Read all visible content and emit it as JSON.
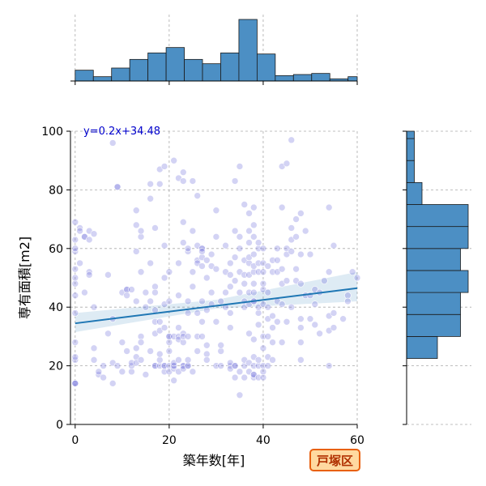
{
  "chart_data": {
    "type": "scatter",
    "title": "",
    "xlabel": "築年数[年]",
    "ylabel": "専有面積[m2]",
    "xlim": [
      -1,
      60
    ],
    "ylim": [
      0,
      100
    ],
    "xticks": [
      0,
      20,
      40,
      60
    ],
    "yticks": [
      0,
      20,
      40,
      60,
      80,
      100
    ],
    "grid": true,
    "regression": {
      "label": "y=0.2x+34.48",
      "slope": 0.2,
      "intercept": 34.48,
      "x_range": [
        0,
        60
      ],
      "ci_band": {
        "x": [
          0,
          30,
          60
        ],
        "lower": [
          31.5,
          39.5,
          42
        ],
        "upper": [
          38,
          42.5,
          52
        ]
      }
    },
    "badge": "戸塚区",
    "colors": {
      "point": "#7777dd",
      "line": "#1f77b4",
      "hist": "#4c8fc4",
      "badge_bg": "#ffd9a0",
      "badge_border": "#e86010"
    },
    "top_histogram": {
      "bin_edges": [
        0,
        3.87,
        7.74,
        11.61,
        15.48,
        19.35,
        23.22,
        27.09,
        30.96,
        34.83,
        38.7,
        42.57,
        46.44,
        50.31,
        54.18,
        58.05,
        60
      ],
      "counts": [
        10,
        4,
        12,
        20,
        26,
        31,
        20,
        16,
        26,
        57,
        25,
        5,
        6,
        7,
        2,
        4
      ]
    },
    "right_histogram": {
      "bin_edges": [
        0,
        7.5,
        15,
        22.5,
        30,
        37.5,
        45,
        52.5,
        60,
        67.5,
        75,
        82.5,
        90,
        97.5,
        100
      ],
      "counts": [
        0,
        0,
        0,
        4,
        7,
        7,
        8,
        7,
        8,
        8,
        2,
        1,
        1,
        1
      ]
    },
    "points": [
      [
        0,
        14
      ],
      [
        0,
        14
      ],
      [
        0,
        14
      ],
      [
        0,
        22
      ],
      [
        0,
        23
      ],
      [
        0,
        28
      ],
      [
        0,
        38
      ],
      [
        0,
        44
      ],
      [
        0,
        48
      ],
      [
        0,
        50
      ],
      [
        0,
        53
      ],
      [
        0,
        59
      ],
      [
        0,
        60
      ],
      [
        0,
        63
      ],
      [
        0,
        69
      ],
      [
        1,
        67
      ],
      [
        1,
        66
      ],
      [
        1,
        55
      ],
      [
        2,
        45
      ],
      [
        2,
        64
      ],
      [
        2,
        64
      ],
      [
        3,
        52
      ],
      [
        3,
        51
      ],
      [
        3,
        63
      ],
      [
        3,
        66
      ],
      [
        4,
        65
      ],
      [
        4,
        40
      ],
      [
        4,
        26
      ],
      [
        4,
        22
      ],
      [
        5,
        17
      ],
      [
        5,
        18
      ],
      [
        6,
        16
      ],
      [
        6,
        20
      ],
      [
        7,
        51
      ],
      [
        7,
        31
      ],
      [
        8,
        14
      ],
      [
        8,
        36
      ],
      [
        8,
        21
      ],
      [
        8,
        96
      ],
      [
        9,
        81
      ],
      [
        9,
        81
      ],
      [
        9,
        20
      ],
      [
        10,
        18
      ],
      [
        10,
        45
      ],
      [
        10,
        28
      ],
      [
        11,
        46
      ],
      [
        11,
        46
      ],
      [
        11,
        44
      ],
      [
        11,
        25
      ],
      [
        12,
        46
      ],
      [
        12,
        18
      ],
      [
        12,
        20
      ],
      [
        12,
        21
      ],
      [
        13,
        23
      ],
      [
        13,
        21
      ],
      [
        13,
        42
      ],
      [
        13,
        26
      ],
      [
        13,
        59
      ],
      [
        13,
        68
      ],
      [
        13,
        73
      ],
      [
        14,
        52
      ],
      [
        14,
        64
      ],
      [
        14,
        66
      ],
      [
        14,
        30
      ],
      [
        14,
        28
      ],
      [
        14,
        22
      ],
      [
        15,
        17
      ],
      [
        15,
        45
      ],
      [
        15,
        40
      ],
      [
        16,
        42
      ],
      [
        16,
        55
      ],
      [
        16,
        25
      ],
      [
        16,
        77
      ],
      [
        16,
        82
      ],
      [
        17,
        67
      ],
      [
        17,
        39
      ],
      [
        17,
        31
      ],
      [
        17,
        20
      ],
      [
        17,
        20
      ],
      [
        17,
        47
      ],
      [
        17,
        45
      ],
      [
        17,
        35
      ],
      [
        18,
        35
      ],
      [
        18,
        87
      ],
      [
        18,
        82
      ],
      [
        18,
        32
      ],
      [
        18,
        20
      ],
      [
        18,
        22
      ],
      [
        18,
        24
      ],
      [
        19,
        18
      ],
      [
        19,
        20
      ],
      [
        19,
        20
      ],
      [
        19,
        41
      ],
      [
        19,
        50
      ],
      [
        19,
        61
      ],
      [
        19,
        33
      ],
      [
        19,
        88
      ],
      [
        20,
        20
      ],
      [
        20,
        28
      ],
      [
        20,
        30
      ],
      [
        20,
        25
      ],
      [
        20,
        52
      ],
      [
        20,
        42
      ],
      [
        20,
        30
      ],
      [
        20,
        18
      ],
      [
        21,
        90
      ],
      [
        21,
        30
      ],
      [
        21,
        20
      ],
      [
        21,
        19
      ],
      [
        21,
        20
      ],
      [
        21,
        15
      ],
      [
        21,
        21
      ],
      [
        22,
        33
      ],
      [
        22,
        30
      ],
      [
        22,
        44
      ],
      [
        22,
        84
      ],
      [
        22,
        29
      ],
      [
        22,
        22
      ],
      [
        22,
        55
      ],
      [
        22,
        18
      ],
      [
        23,
        86
      ],
      [
        23,
        83
      ],
      [
        23,
        69
      ],
      [
        23,
        62
      ],
      [
        23,
        31
      ],
      [
        23,
        28
      ],
      [
        23,
        20
      ],
      [
        23,
        20
      ],
      [
        23,
        30
      ],
      [
        23,
        19
      ],
      [
        24,
        59
      ],
      [
        24,
        42
      ],
      [
        24,
        38
      ],
      [
        24,
        30
      ],
      [
        24,
        20
      ],
      [
        24,
        20
      ],
      [
        24,
        22
      ],
      [
        24,
        60
      ],
      [
        25,
        18
      ],
      [
        25,
        47
      ],
      [
        25,
        52
      ],
      [
        25,
        66
      ],
      [
        25,
        83
      ],
      [
        26,
        56
      ],
      [
        26,
        78
      ],
      [
        26,
        61
      ],
      [
        26,
        30
      ],
      [
        26,
        38
      ],
      [
        26,
        55
      ],
      [
        26,
        25
      ],
      [
        27,
        54
      ],
      [
        27,
        57
      ],
      [
        27,
        60
      ],
      [
        27,
        60
      ],
      [
        27,
        59
      ],
      [
        27,
        42
      ],
      [
        27,
        35
      ],
      [
        27,
        30
      ],
      [
        28,
        56
      ],
      [
        28,
        50
      ],
      [
        28,
        24
      ],
      [
        28,
        22
      ],
      [
        28,
        39
      ],
      [
        28,
        27
      ],
      [
        29,
        45
      ],
      [
        29,
        41
      ],
      [
        29,
        54
      ],
      [
        29,
        58
      ],
      [
        30,
        53
      ],
      [
        30,
        64
      ],
      [
        30,
        73
      ],
      [
        30,
        35
      ],
      [
        30,
        20
      ],
      [
        31,
        25
      ],
      [
        31,
        42
      ],
      [
        31,
        27
      ],
      [
        31,
        20
      ],
      [
        32,
        52
      ],
      [
        32,
        61
      ],
      [
        32,
        45
      ],
      [
        32,
        40
      ],
      [
        33,
        47
      ],
      [
        33,
        51
      ],
      [
        33,
        55
      ],
      [
        33,
        33
      ],
      [
        33,
        38
      ],
      [
        33,
        20
      ],
      [
        33,
        21
      ],
      [
        33,
        19
      ],
      [
        34,
        83
      ],
      [
        34,
        66
      ],
      [
        34,
        49
      ],
      [
        34,
        57
      ],
      [
        34,
        20
      ],
      [
        34,
        16
      ],
      [
        34,
        20
      ],
      [
        35,
        10
      ],
      [
        35,
        18
      ],
      [
        35,
        45
      ],
      [
        35,
        52
      ],
      [
        35,
        60
      ],
      [
        35,
        64
      ],
      [
        35,
        88
      ],
      [
        36,
        16
      ],
      [
        36,
        20
      ],
      [
        36,
        22
      ],
      [
        36,
        48
      ],
      [
        36,
        51
      ],
      [
        36,
        42
      ],
      [
        36,
        40
      ],
      [
        36,
        56
      ],
      [
        36,
        75
      ],
      [
        37,
        18
      ],
      [
        37,
        21
      ],
      [
        37,
        55
      ],
      [
        37,
        31
      ],
      [
        37,
        41
      ],
      [
        37,
        45
      ],
      [
        37,
        51
      ],
      [
        37,
        57
      ],
      [
        37,
        62
      ],
      [
        37,
        66
      ],
      [
        37,
        72
      ],
      [
        38,
        16
      ],
      [
        38,
        17
      ],
      [
        38,
        20
      ],
      [
        38,
        17
      ],
      [
        38,
        23
      ],
      [
        38,
        29
      ],
      [
        38,
        42
      ],
      [
        38,
        42
      ],
      [
        38,
        45
      ],
      [
        38,
        48
      ],
      [
        38,
        52
      ],
      [
        38,
        54
      ],
      [
        38,
        58
      ],
      [
        38,
        64
      ],
      [
        38,
        68
      ],
      [
        38,
        74
      ],
      [
        39,
        16
      ],
      [
        39,
        20
      ],
      [
        39,
        22
      ],
      [
        39,
        34
      ],
      [
        39,
        38
      ],
      [
        39,
        40
      ],
      [
        39,
        52
      ],
      [
        39,
        55
      ],
      [
        39,
        60
      ],
      [
        39,
        62
      ],
      [
        40,
        16
      ],
      [
        40,
        18
      ],
      [
        40,
        20
      ],
      [
        40,
        26
      ],
      [
        40,
        30
      ],
      [
        40,
        41
      ],
      [
        40,
        46
      ],
      [
        40,
        48
      ],
      [
        40,
        52
      ],
      [
        40,
        55
      ],
      [
        40,
        60
      ],
      [
        41,
        20
      ],
      [
        41,
        23
      ],
      [
        41,
        30
      ],
      [
        41,
        36
      ],
      [
        41,
        40
      ],
      [
        41,
        45
      ],
      [
        41,
        54
      ],
      [
        42,
        22
      ],
      [
        42,
        28
      ],
      [
        42,
        33
      ],
      [
        42,
        37
      ],
      [
        42,
        52
      ],
      [
        42,
        56
      ],
      [
        43,
        35
      ],
      [
        43,
        42
      ],
      [
        43,
        52
      ],
      [
        43,
        56
      ],
      [
        43,
        60
      ],
      [
        44,
        28
      ],
      [
        44,
        41
      ],
      [
        44,
        48
      ],
      [
        44,
        53
      ],
      [
        44,
        74
      ],
      [
        44,
        88
      ],
      [
        45,
        35
      ],
      [
        45,
        49
      ],
      [
        45,
        58
      ],
      [
        45,
        60
      ],
      [
        45,
        89
      ],
      [
        46,
        59
      ],
      [
        46,
        63
      ],
      [
        46,
        67
      ],
      [
        46,
        40
      ],
      [
        46,
        97
      ],
      [
        47,
        49
      ],
      [
        47,
        53
      ],
      [
        47,
        64
      ],
      [
        47,
        70
      ],
      [
        48,
        22
      ],
      [
        48,
        28
      ],
      [
        48,
        33
      ],
      [
        48,
        36
      ],
      [
        48,
        48
      ],
      [
        48,
        58
      ],
      [
        48,
        72
      ],
      [
        49,
        44
      ],
      [
        49,
        66
      ],
      [
        50,
        36
      ],
      [
        50,
        44
      ],
      [
        50,
        58
      ],
      [
        51,
        41
      ],
      [
        51,
        46
      ],
      [
        51,
        34
      ],
      [
        52,
        31
      ],
      [
        52,
        45
      ],
      [
        53,
        49
      ],
      [
        54,
        32
      ],
      [
        54,
        37
      ],
      [
        54,
        52
      ],
      [
        54,
        74
      ],
      [
        54,
        20
      ],
      [
        55,
        33
      ],
      [
        55,
        38
      ],
      [
        55,
        61
      ],
      [
        57,
        36
      ],
      [
        58,
        44
      ],
      [
        58,
        42
      ],
      [
        59,
        52
      ],
      [
        60,
        50
      ]
    ]
  }
}
